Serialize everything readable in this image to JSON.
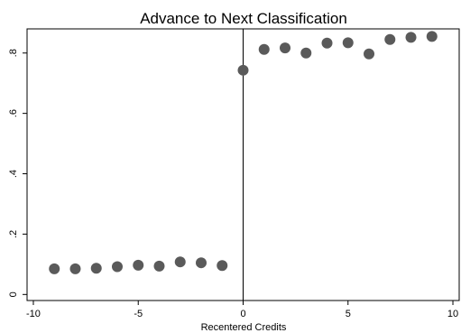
{
  "chart_data": {
    "type": "scatter",
    "title": "Advance to Next Classification",
    "xlabel": "Recentered Credits",
    "ylabel": "",
    "xlim": [
      -10.3,
      10.3
    ],
    "ylim": [
      -0.02,
      0.88
    ],
    "xticks": [
      -10,
      -5,
      0,
      5,
      10
    ],
    "xtick_labels": [
      "-10",
      "-5",
      "0",
      "5",
      "10"
    ],
    "yticks": [
      0,
      0.2,
      0.4,
      0.6,
      0.8
    ],
    "ytick_labels": [
      "0",
      ".2",
      ".4",
      ".6",
      ".8"
    ],
    "cutoff_x": 0,
    "grid": false,
    "legend": "none",
    "marker_color": "#5a5a5a",
    "points": [
      {
        "x": -9,
        "y": 0.085
      },
      {
        "x": -8,
        "y": 0.085
      },
      {
        "x": -7,
        "y": 0.087
      },
      {
        "x": -6,
        "y": 0.092
      },
      {
        "x": -5,
        "y": 0.097
      },
      {
        "x": -4,
        "y": 0.094
      },
      {
        "x": -3,
        "y": 0.108
      },
      {
        "x": -2,
        "y": 0.105
      },
      {
        "x": -1,
        "y": 0.096
      },
      {
        "x": 0,
        "y": 0.743
      },
      {
        "x": 1,
        "y": 0.812
      },
      {
        "x": 2,
        "y": 0.817
      },
      {
        "x": 3,
        "y": 0.8
      },
      {
        "x": 4,
        "y": 0.833
      },
      {
        "x": 5,
        "y": 0.834
      },
      {
        "x": 6,
        "y": 0.797
      },
      {
        "x": 7,
        "y": 0.845
      },
      {
        "x": 8,
        "y": 0.852
      },
      {
        "x": 9,
        "y": 0.855
      }
    ]
  }
}
